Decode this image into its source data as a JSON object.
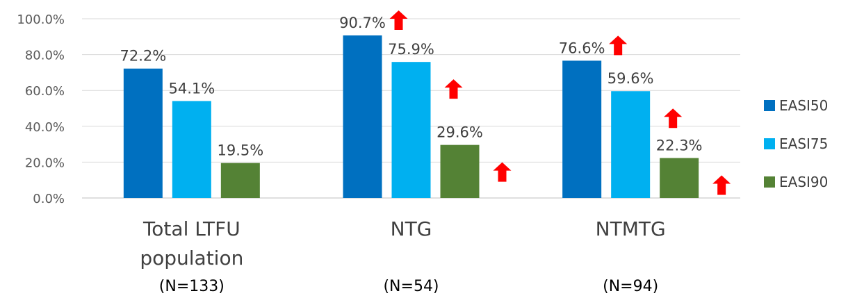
{
  "chart_data": {
    "type": "bar",
    "categories": [
      "Total LTFU population",
      "NTG",
      "NTMTG"
    ],
    "category_lines": [
      [
        "Total LTFU",
        "population"
      ],
      [
        "NTG"
      ],
      [
        "NTMTG"
      ]
    ],
    "sample_sizes": [
      "(N=133)",
      "(N=54)",
      "(N=94)"
    ],
    "series": [
      {
        "name": "EASI50",
        "color": "#0070C0",
        "values": [
          72.2,
          90.7,
          76.6
        ]
      },
      {
        "name": "EASI75",
        "color": "#00B0F0",
        "values": [
          54.1,
          75.9,
          59.6
        ]
      },
      {
        "name": "EASI90",
        "color": "#548235",
        "values": [
          19.5,
          29.6,
          22.3
        ]
      }
    ],
    "value_format": "percent_1dp",
    "ylim": [
      0,
      100
    ],
    "yticks": [
      0,
      20,
      40,
      60,
      80,
      100
    ],
    "ytick_labels": [
      "0.0%",
      "20.0%",
      "40.0%",
      "60.0%",
      "80.0%",
      "100.0%"
    ],
    "grid": true,
    "legend_position": "right",
    "annotations": {
      "icon": "red-up-arrow-icon",
      "color": "#FF0000",
      "marked_categories": [
        "NTG",
        "NTMTG"
      ]
    },
    "title": "",
    "xlabel": "",
    "ylabel": ""
  }
}
